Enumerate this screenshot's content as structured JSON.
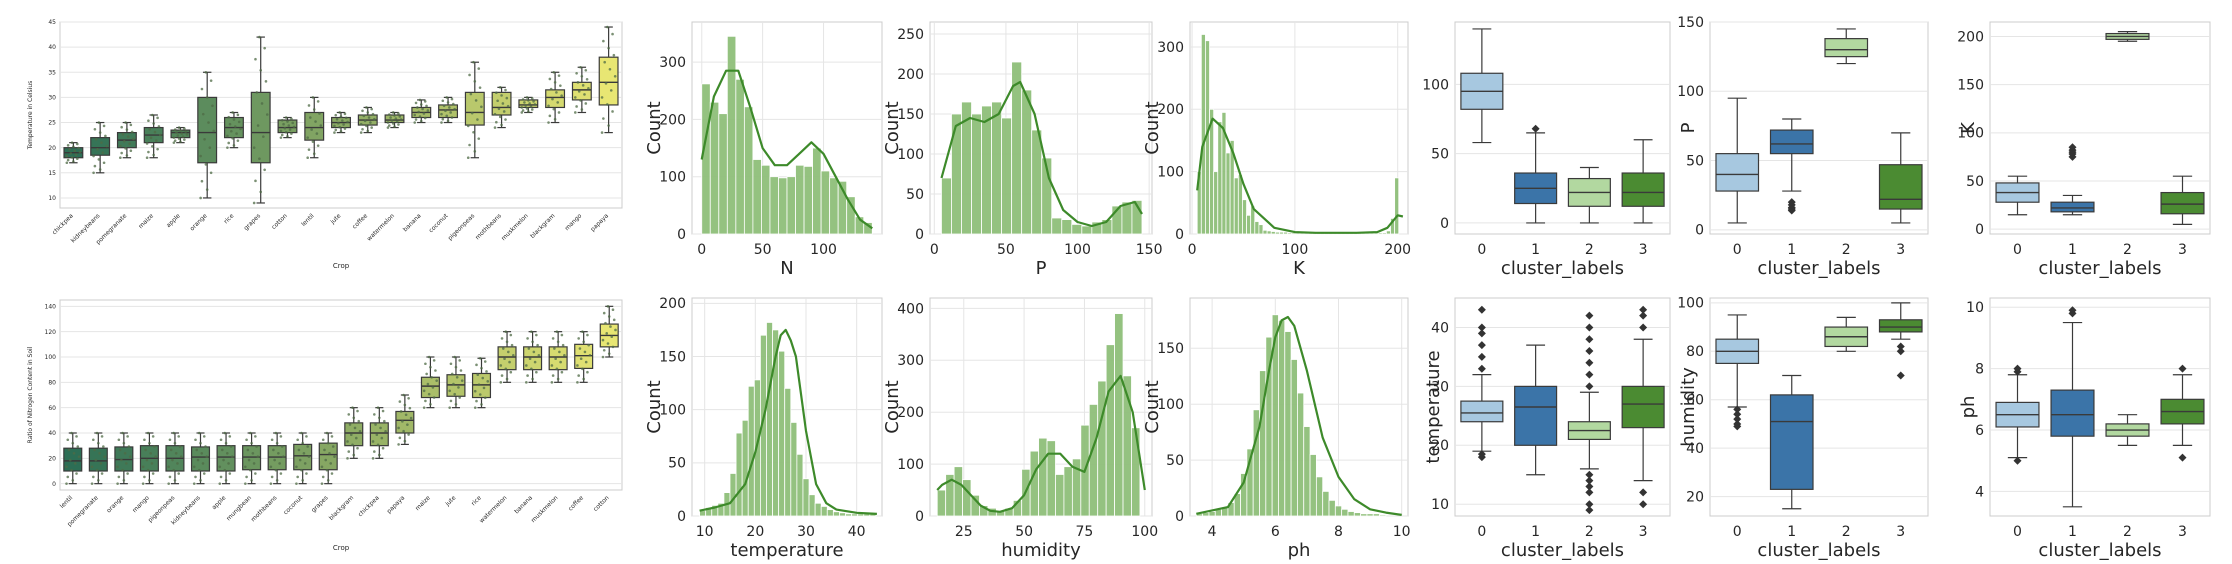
{
  "chart_data": [
    {
      "type": "box",
      "xlabel": "Crop",
      "ylabel": "Temperature in Celsius",
      "ylim": [
        8,
        45
      ],
      "yticks": [
        10,
        15,
        20,
        25,
        30,
        35,
        40,
        45
      ],
      "grid": true,
      "palette": "summer",
      "categories": [
        "chickpea",
        "kidneybeans",
        "pomegranate",
        "maize",
        "apple",
        "orange",
        "rice",
        "grapes",
        "cotton",
        "lentil",
        "jute",
        "coffee",
        "watermelon",
        "banana",
        "coconut",
        "pigeonpeas",
        "mothbeans",
        "muskmelon",
        "blackgram",
        "mango",
        "papaya"
      ],
      "boxes": [
        [
          17,
          18,
          19,
          20,
          21
        ],
        [
          15,
          18.5,
          20,
          22,
          25
        ],
        [
          18,
          20,
          21.5,
          23,
          25
        ],
        [
          18,
          21,
          22.5,
          24,
          26.5
        ],
        [
          21,
          22,
          23,
          23.5,
          24
        ],
        [
          10,
          17,
          23,
          30,
          35
        ],
        [
          20,
          22,
          24,
          26,
          27
        ],
        [
          9,
          17,
          23,
          31,
          42
        ],
        [
          22,
          23,
          24,
          25.5,
          26
        ],
        [
          18,
          21.5,
          24,
          27,
          30
        ],
        [
          23,
          24,
          25,
          26,
          27
        ],
        [
          23,
          24.5,
          25.5,
          26.5,
          28
        ],
        [
          24,
          25,
          25.5,
          26.5,
          27
        ],
        [
          25,
          26,
          27,
          28,
          29.5
        ],
        [
          25,
          26,
          27.5,
          28.5,
          30
        ],
        [
          18,
          24.5,
          27,
          31,
          37
        ],
        [
          24,
          26.5,
          28,
          31,
          32
        ],
        [
          27,
          28,
          28.5,
          29.5,
          30
        ],
        [
          25,
          28,
          30,
          31.5,
          35
        ],
        [
          27,
          29.5,
          31.5,
          33,
          36
        ],
        [
          23,
          28.5,
          33,
          38,
          44
        ]
      ]
    },
    {
      "type": "box",
      "xlabel": "Crop",
      "ylabel": "Ratio of Nitrogen Content in Soil",
      "ylim": [
        -5,
        145
      ],
      "yticks": [
        0,
        20,
        40,
        60,
        80,
        100,
        120,
        140
      ],
      "grid": true,
      "palette": "summer",
      "categories": [
        "lentil",
        "pomegranate",
        "orange",
        "mango",
        "pigeonpeas",
        "kidneybeans",
        "apple",
        "mungbean",
        "mothbeans",
        "coconut",
        "grapes",
        "blackgram",
        "chickpea",
        "papaya",
        "maize",
        "jute",
        "rice",
        "watermelon",
        "banana",
        "muskmelon",
        "coffee",
        "cotton"
      ],
      "boxes": [
        [
          0,
          10,
          18,
          28,
          40
        ],
        [
          0,
          10,
          18,
          28,
          40
        ],
        [
          0,
          10,
          19,
          29,
          40
        ],
        [
          0,
          10,
          20,
          30,
          40
        ],
        [
          0,
          10,
          20,
          30,
          40
        ],
        [
          0,
          10,
          21,
          29,
          40
        ],
        [
          0,
          10,
          21,
          30,
          40
        ],
        [
          0,
          11,
          21,
          30,
          40
        ],
        [
          0,
          11,
          21,
          30,
          40
        ],
        [
          0,
          11,
          22,
          31,
          40
        ],
        [
          0,
          11,
          23,
          32,
          40
        ],
        [
          20,
          30,
          40,
          48,
          60
        ],
        [
          20,
          30,
          40,
          48,
          60
        ],
        [
          31,
          40,
          50,
          57,
          70
        ],
        [
          60,
          68,
          77,
          84,
          100
        ],
        [
          60,
          69,
          78,
          86,
          100
        ],
        [
          60,
          68,
          78,
          87,
          99
        ],
        [
          80,
          90,
          100,
          108,
          120
        ],
        [
          80,
          90,
          100,
          108,
          120
        ],
        [
          80,
          90,
          100,
          108,
          120
        ],
        [
          80,
          91,
          101,
          110,
          120
        ],
        [
          100,
          108,
          117,
          126,
          140
        ]
      ]
    },
    {
      "type": "histogram",
      "xlabel": "N",
      "ylabel": "Count",
      "xlim": [
        -8,
        148
      ],
      "ylim": [
        0,
        370
      ],
      "xticks": [
        0,
        50,
        100
      ],
      "yticks": [
        0,
        100,
        200,
        300
      ],
      "bin_start": 0,
      "bin_width": 7,
      "counts": [
        262,
        230,
        210,
        345,
        270,
        222,
        130,
        120,
        100,
        98,
        100,
        120,
        118,
        150,
        110,
        98,
        92,
        65,
        30,
        20
      ],
      "kde_x": [
        0,
        10,
        20,
        30,
        40,
        50,
        60,
        70,
        80,
        90,
        100,
        110,
        120,
        130,
        140
      ],
      "kde_y": [
        130,
        240,
        285,
        285,
        220,
        150,
        120,
        120,
        140,
        160,
        140,
        100,
        60,
        25,
        10
      ]
    },
    {
      "type": "histogram",
      "xlabel": "P",
      "ylabel": "Count",
      "xlim": [
        -3,
        152
      ],
      "ylim": [
        0,
        265
      ],
      "xticks": [
        0,
        50,
        100,
        150
      ],
      "yticks": [
        0,
        50,
        100,
        150,
        200,
        250
      ],
      "bin_start": 5,
      "bin_width": 7,
      "counts": [
        70,
        150,
        165,
        150,
        160,
        165,
        145,
        215,
        180,
        130,
        95,
        20,
        18,
        12,
        10,
        15,
        18,
        35,
        40,
        42
      ],
      "kde_x": [
        5,
        15,
        25,
        35,
        45,
        55,
        60,
        70,
        80,
        90,
        100,
        110,
        120,
        130,
        140,
        145
      ],
      "kde_y": [
        70,
        135,
        145,
        140,
        150,
        185,
        190,
        150,
        70,
        30,
        15,
        10,
        15,
        35,
        40,
        25
      ]
    },
    {
      "type": "histogram",
      "xlabel": "K",
      "ylabel": "Count",
      "xlim": [
        -2,
        210
      ],
      "ylim": [
        0,
        340
      ],
      "xticks": [
        0,
        100,
        200
      ],
      "yticks": [
        0,
        100,
        200,
        300
      ],
      "bin_start": 5,
      "bin_width": 4,
      "counts": [
        100,
        320,
        310,
        200,
        100,
        180,
        195,
        130,
        150,
        90,
        95,
        55,
        30,
        45,
        20,
        15,
        6,
        5,
        4,
        3,
        3,
        3,
        2,
        2,
        2,
        2,
        2,
        2,
        2,
        2,
        2,
        2,
        2,
        2,
        2,
        2,
        2,
        2,
        2,
        2,
        2,
        2,
        2,
        2,
        2,
        2,
        5,
        25,
        90
      ],
      "kde_x": [
        5,
        10,
        20,
        30,
        40,
        50,
        60,
        80,
        100,
        120,
        140,
        160,
        180,
        190,
        200,
        205
      ],
      "kde_y": [
        70,
        140,
        185,
        170,
        130,
        80,
        40,
        10,
        3,
        2,
        2,
        2,
        3,
        10,
        30,
        28
      ]
    },
    {
      "type": "box",
      "xlabel": "cluster_labels",
      "ylabel": "",
      "ylim": [
        -8,
        145
      ],
      "yticks": [
        0,
        50,
        100
      ],
      "grid": true,
      "categories": [
        "0",
        "1",
        "2",
        "3"
      ],
      "colors": [
        "#a7c8e0",
        "#3b74a8",
        "#b2d8a0",
        "#4b8b32"
      ],
      "boxes": [
        [
          58,
          82,
          95,
          108,
          140
        ],
        [
          0,
          14,
          25,
          36,
          65
        ],
        [
          0,
          12,
          22,
          32,
          40
        ],
        [
          0,
          12,
          22,
          36,
          60
        ]
      ],
      "outliers": [
        [],
        [
          68
        ],
        [],
        []
      ]
    },
    {
      "type": "box",
      "xlabel": "cluster_labels",
      "ylabel": "P",
      "ylim": [
        -3,
        150
      ],
      "yticks": [
        0,
        50,
        100,
        150
      ],
      "grid": true,
      "categories": [
        "0",
        "1",
        "2",
        "3"
      ],
      "colors": [
        "#a7c8e0",
        "#3b74a8",
        "#b2d8a0",
        "#4b8b32"
      ],
      "boxes": [
        [
          5,
          28,
          40,
          55,
          95
        ],
        [
          28,
          55,
          62,
          72,
          80
        ],
        [
          120,
          125,
          130,
          138,
          145
        ],
        [
          5,
          15,
          22,
          47,
          70
        ]
      ],
      "outliers": [
        [],
        [
          14,
          15,
          16,
          18,
          20
        ],
        [],
        []
      ]
    },
    {
      "type": "box",
      "xlabel": "cluster_labels",
      "ylabel": "K",
      "ylim": [
        -5,
        215
      ],
      "yticks": [
        0,
        50,
        100,
        150,
        200
      ],
      "grid": true,
      "categories": [
        "0",
        "1",
        "2",
        "3"
      ],
      "colors": [
        "#a7c8e0",
        "#3b74a8",
        "#b2d8a0",
        "#4b8b32"
      ],
      "boxes": [
        [
          15,
          28,
          38,
          48,
          55
        ],
        [
          15,
          18,
          22,
          28,
          35
        ],
        [
          195,
          197,
          200,
          203,
          205
        ],
        [
          5,
          16,
          26,
          38,
          55
        ]
      ],
      "outliers": [
        [],
        [
          75,
          78,
          80,
          82,
          85
        ],
        [],
        []
      ]
    },
    {
      "type": "histogram",
      "xlabel": "temperature",
      "ylabel": "Count",
      "xlim": [
        7.5,
        45
      ],
      "ylim": [
        0,
        205
      ],
      "xticks": [
        10,
        20,
        30,
        40
      ],
      "yticks": [
        0,
        50,
        100,
        150,
        200
      ],
      "bin_start": 9,
      "bin_width": 1.2,
      "counts": [
        5,
        8,
        10,
        12,
        22,
        40,
        78,
        90,
        122,
        128,
        170,
        182,
        175,
        155,
        120,
        88,
        58,
        35,
        20,
        12,
        9,
        6,
        4,
        3,
        2,
        2,
        2,
        2,
        3
      ],
      "kde_x": [
        9,
        12,
        15,
        18,
        20,
        22,
        24,
        25,
        26,
        27,
        28,
        30,
        32,
        34,
        36,
        40,
        44
      ],
      "kde_y": [
        5,
        8,
        12,
        30,
        60,
        100,
        150,
        170,
        175,
        165,
        150,
        80,
        30,
        12,
        6,
        3,
        2
      ]
    },
    {
      "type": "histogram",
      "xlabel": "humidity",
      "ylabel": "Count",
      "xlim": [
        11,
        103
      ],
      "ylim": [
        0,
        420
      ],
      "xticks": [
        25,
        50,
        75,
        100
      ],
      "yticks": [
        0,
        100,
        200,
        300,
        400
      ],
      "bin_start": 14,
      "bin_width": 3.5,
      "counts": [
        50,
        80,
        95,
        70,
        40,
        20,
        15,
        10,
        15,
        30,
        90,
        125,
        150,
        145,
        80,
        95,
        110,
        175,
        215,
        260,
        330,
        390,
        270,
        170
      ],
      "kde_x": [
        14,
        16,
        20,
        24,
        28,
        32,
        36,
        40,
        45,
        50,
        55,
        60,
        65,
        70,
        75,
        80,
        85,
        90,
        95,
        100
      ],
      "kde_y": [
        50,
        60,
        70,
        60,
        40,
        20,
        10,
        8,
        15,
        40,
        90,
        120,
        120,
        95,
        85,
        150,
        240,
        270,
        200,
        50
      ]
    },
    {
      "type": "histogram",
      "xlabel": "ph",
      "ylabel": "Count",
      "xlim": [
        3.3,
        10.2
      ],
      "ylim": [
        0,
        195
      ],
      "xticks": [
        4,
        6,
        8,
        10
      ],
      "yticks": [
        0,
        50,
        100,
        150
      ],
      "bin_start": 3.5,
      "bin_width": 0.2,
      "counts": [
        2,
        3,
        4,
        6,
        8,
        12,
        20,
        38,
        60,
        95,
        130,
        160,
        180,
        175,
        165,
        140,
        110,
        80,
        55,
        35,
        22,
        14,
        9,
        6,
        4,
        3,
        2,
        2,
        2,
        1
      ],
      "kde_x": [
        3.5,
        4.5,
        5,
        5.5,
        5.8,
        6,
        6.2,
        6.4,
        6.6,
        7,
        7.5,
        8,
        8.5,
        9,
        9.5,
        10
      ],
      "kde_y": [
        2,
        8,
        30,
        80,
        130,
        160,
        175,
        178,
        170,
        130,
        70,
        35,
        15,
        6,
        3,
        1
      ]
    },
    {
      "type": "box",
      "xlabel": "cluster_labels",
      "ylabel": "temperature",
      "ylim": [
        8,
        45
      ],
      "yticks": [
        10,
        20,
        30,
        40
      ],
      "grid": true,
      "categories": [
        "0",
        "1",
        "2",
        "3"
      ],
      "colors": [
        "#a7c8e0",
        "#3b74a8",
        "#b2d8a0",
        "#4b8b32"
      ],
      "boxes": [
        [
          19,
          24,
          25.5,
          27.5,
          32
        ],
        [
          15,
          20,
          26.5,
          30,
          37
        ],
        [
          16,
          21,
          22.5,
          24,
          29
        ],
        [
          14,
          23,
          27,
          30,
          38
        ]
      ],
      "outliers": [
        [
          18,
          18.5,
          33,
          35,
          37,
          39,
          40,
          43
        ],
        [],
        [
          9,
          10,
          12,
          13,
          14,
          15,
          30,
          32,
          34,
          36,
          38,
          40,
          42
        ],
        [
          10,
          12,
          40,
          42,
          43
        ]
      ]
    },
    {
      "type": "box",
      "xlabel": "cluster_labels",
      "ylabel": "humidity",
      "ylim": [
        12,
        102
      ],
      "yticks": [
        20,
        40,
        60,
        80,
        100
      ],
      "grid": true,
      "categories": [
        "0",
        "1",
        "2",
        "3"
      ],
      "colors": [
        "#a7c8e0",
        "#3b74a8",
        "#b2d8a0",
        "#4b8b32"
      ],
      "boxes": [
        [
          57,
          75,
          80,
          85,
          95
        ],
        [
          15,
          23,
          51,
          62,
          70
        ],
        [
          80,
          82,
          86,
          90,
          94
        ],
        [
          85,
          88,
          90,
          93,
          100
        ]
      ],
      "outliers": [
        [
          49,
          50,
          52,
          54,
          56
        ],
        [],
        [],
        [
          70,
          80,
          82
        ]
      ]
    },
    {
      "type": "box",
      "xlabel": "cluster_labels",
      "ylabel": "ph",
      "ylim": [
        3.2,
        10.3
      ],
      "yticks": [
        4,
        6,
        8,
        10
      ],
      "grid": true,
      "categories": [
        "0",
        "1",
        "2",
        "3"
      ],
      "colors": [
        "#a7c8e0",
        "#3b74a8",
        "#b2d8a0",
        "#4b8b32"
      ],
      "boxes": [
        [
          5.1,
          6.1,
          6.5,
          6.9,
          7.8
        ],
        [
          3.5,
          5.8,
          6.5,
          7.3,
          9.5
        ],
        [
          5.5,
          5.8,
          6.0,
          6.2,
          6.5
        ],
        [
          5.5,
          6.2,
          6.6,
          7.0,
          7.8
        ]
      ],
      "outliers": [
        [
          5.0,
          7.9,
          8.0
        ],
        [
          9.8,
          9.9
        ],
        [],
        [
          5.1,
          8.0
        ]
      ]
    }
  ]
}
